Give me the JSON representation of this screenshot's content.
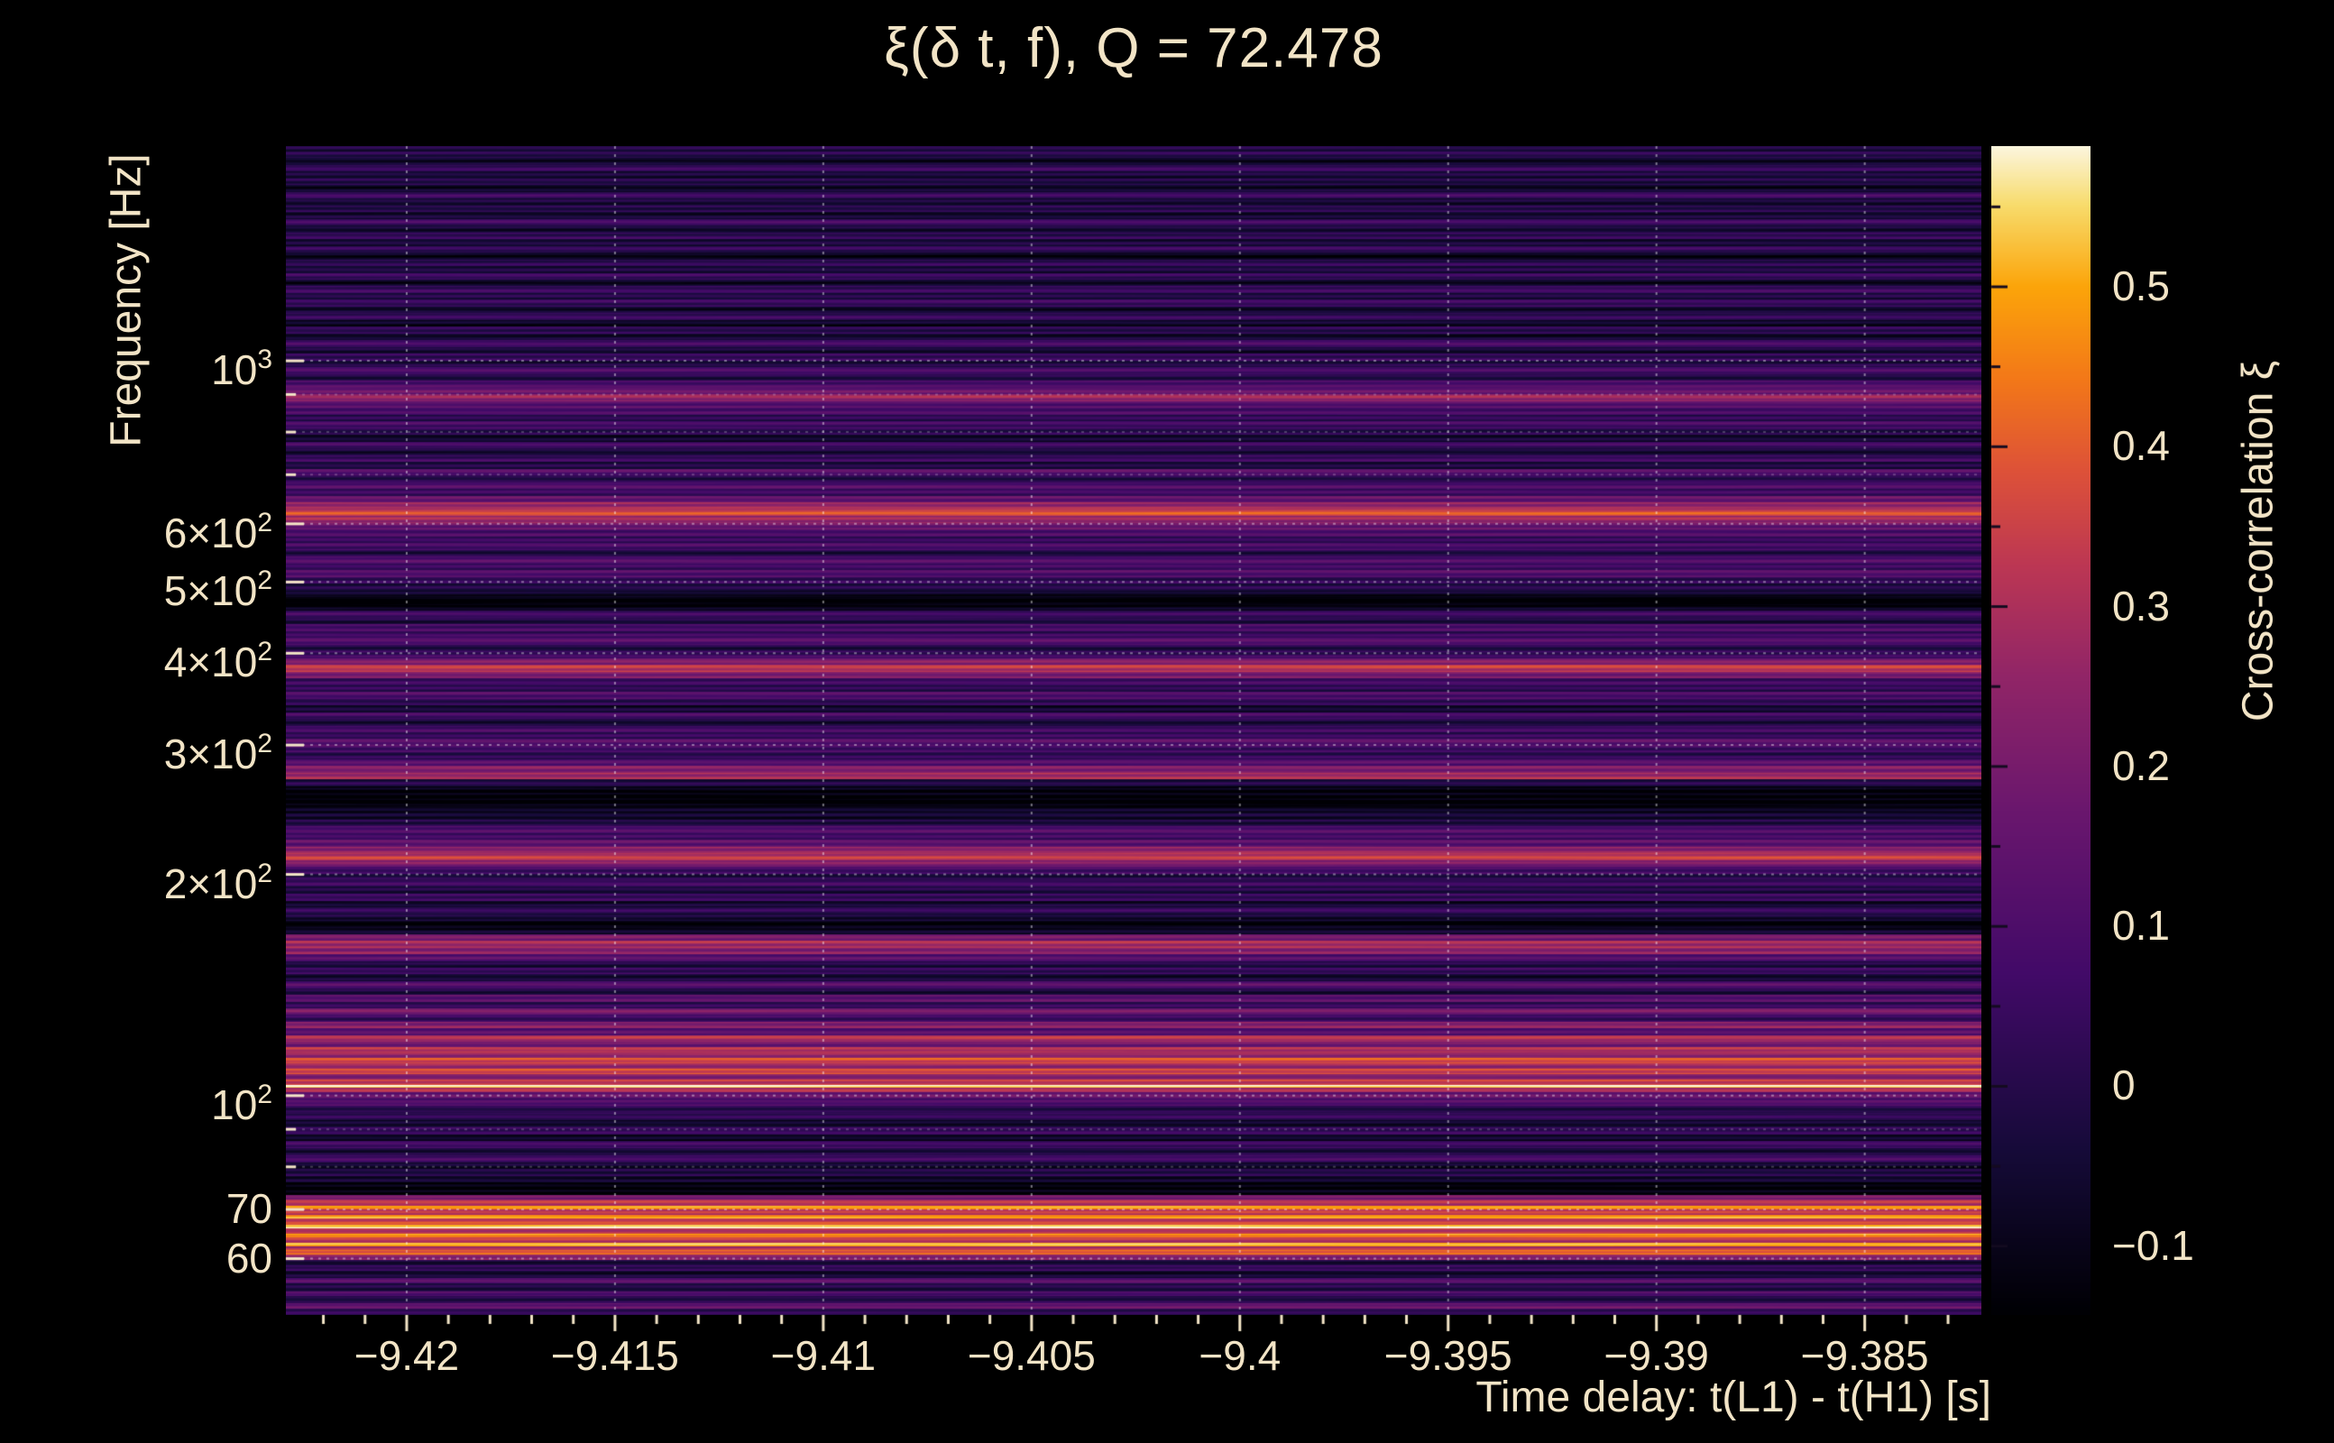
{
  "colors": {
    "background": "#000000",
    "text": "#f2e4c6",
    "grid": "#ffffff",
    "colorbar_tick": "#140b20"
  },
  "chart": {
    "title": "ξ(δ t, f), Q = 72.478",
    "q_value": "72.478",
    "xlabel": "Time delay: t(L1) - t(H1) [s]",
    "ylabel": "Frequency [Hz]",
    "colorbar_label": "Cross-correlation ξ"
  },
  "chart_data": {
    "type": "heatmap",
    "title": "ξ(δ t, f), Q = 72.478",
    "xlabel": "Time delay: t(L1) - t(H1) [s]",
    "ylabel": "Frequency [Hz]",
    "zlabel": "Cross-correlation ξ",
    "x_range": [
      -9.4229,
      -9.3822
    ],
    "y_range": [
      50.3,
      1960
    ],
    "y_scale": "log",
    "z_range": [
      -0.143,
      0.588
    ],
    "grid": "dotted-white",
    "x_ticks": [
      -9.42,
      -9.415,
      -9.41,
      -9.405,
      -9.4,
      -9.395,
      -9.39,
      -9.385
    ],
    "x_tick_labels": [
      "−9.42",
      "−9.415",
      "−9.41",
      "−9.405",
      "−9.4",
      "−9.395",
      "−9.39",
      "−9.385"
    ],
    "x_minor_step": 0.001,
    "y_ticks": [
      {
        "v": 1000,
        "base": "10",
        "exp": "3"
      },
      {
        "v": 600,
        "base": "6×10",
        "exp": "2"
      },
      {
        "v": 500,
        "base": "5×10",
        "exp": "2"
      },
      {
        "v": 400,
        "base": "4×10",
        "exp": "2"
      },
      {
        "v": 300,
        "base": "3×10",
        "exp": "2"
      },
      {
        "v": 200,
        "base": "2×10",
        "exp": "2"
      },
      {
        "v": 100,
        "base": "10",
        "exp": "2"
      },
      {
        "v": 70,
        "base": "70",
        "exp": ""
      },
      {
        "v": 60,
        "base": "60",
        "exp": ""
      }
    ],
    "y_minor_ticks": [
      50,
      60,
      70,
      80,
      90,
      100,
      200,
      300,
      400,
      500,
      600,
      700,
      800,
      900,
      1000,
      2000
    ],
    "colorbar_ticks": [
      0.5,
      0.4,
      0.3,
      0.2,
      0.1,
      0,
      -0.1
    ],
    "colorbar_tick_labels": [
      "0.5",
      "0.4",
      "0.3",
      "0.2",
      "0.1",
      "0",
      "−0.1"
    ],
    "colormap": "inferno",
    "colormap_stops": [
      [
        0.0,
        "#000004"
      ],
      [
        0.14,
        "#160b39"
      ],
      [
        0.29,
        "#420a68"
      ],
      [
        0.43,
        "#6a176e"
      ],
      [
        0.55,
        "#932667"
      ],
      [
        0.64,
        "#bc3754"
      ],
      [
        0.72,
        "#dd513a"
      ],
      [
        0.8,
        "#f37819"
      ],
      [
        0.88,
        "#fca50a"
      ],
      [
        0.95,
        "#f8dc6c"
      ],
      [
        1.0,
        "#fcf6dd"
      ]
    ],
    "bands_note": "Cross-correlation ξ is nearly constant in time delay; bands listed as [f_low_Hz, f_high_Hz, xi]",
    "bands": [
      [
        50.0,
        51.3,
        0.03
      ],
      [
        51.3,
        52.2,
        0.14
      ],
      [
        52.2,
        53.4,
        -0.02
      ],
      [
        53.4,
        54.2,
        0.12
      ],
      [
        54.2,
        55.6,
        0.0
      ],
      [
        55.6,
        56.4,
        0.1
      ],
      [
        56.4,
        57.8,
        -0.06
      ],
      [
        57.8,
        58.8,
        0.06
      ],
      [
        58.8,
        59.8,
        -0.03
      ],
      [
        59.8,
        60.8,
        0.22
      ],
      [
        60.8,
        61.6,
        0.4
      ],
      [
        61.6,
        62.4,
        0.3
      ],
      [
        62.4,
        63.0,
        0.52
      ],
      [
        63.0,
        64.2,
        0.34
      ],
      [
        64.2,
        64.9,
        0.47
      ],
      [
        64.9,
        66.0,
        0.3
      ],
      [
        66.0,
        66.8,
        0.55
      ],
      [
        66.8,
        68.0,
        0.36
      ],
      [
        68.0,
        68.8,
        0.5
      ],
      [
        68.8,
        70.0,
        0.33
      ],
      [
        70.0,
        70.9,
        0.45
      ],
      [
        70.9,
        72.2,
        0.3
      ],
      [
        72.2,
        73.2,
        0.2
      ],
      [
        73.2,
        74.6,
        -0.1
      ],
      [
        74.6,
        76.2,
        -0.14
      ],
      [
        76.2,
        77.8,
        -0.08
      ],
      [
        77.8,
        79.5,
        0.0
      ],
      [
        79.5,
        81.2,
        -0.05
      ],
      [
        81.2,
        83.0,
        0.06
      ],
      [
        83.0,
        84.8,
        -0.04
      ],
      [
        84.8,
        86.7,
        0.08
      ],
      [
        86.7,
        88.6,
        -0.07
      ],
      [
        88.6,
        90.6,
        0.02
      ],
      [
        90.6,
        92.6,
        -0.05
      ],
      [
        92.6,
        94.7,
        0.05
      ],
      [
        94.7,
        96.8,
        -0.02
      ],
      [
        96.8,
        99.0,
        0.1
      ],
      [
        99.0,
        101.2,
        0.18
      ],
      [
        101.2,
        102.4,
        0.3
      ],
      [
        102.4,
        103.5,
        0.55
      ],
      [
        103.5,
        105.3,
        0.32
      ],
      [
        105.3,
        107.0,
        0.22
      ],
      [
        107.0,
        108.8,
        0.38
      ],
      [
        108.8,
        110.6,
        0.28
      ],
      [
        110.6,
        112.5,
        0.36
      ],
      [
        112.5,
        114.4,
        0.24
      ],
      [
        114.4,
        116.4,
        0.32
      ],
      [
        116.4,
        118.4,
        0.2
      ],
      [
        118.4,
        120.9,
        0.3
      ],
      [
        120.9,
        123.5,
        0.1
      ],
      [
        123.5,
        126.1,
        0.24
      ],
      [
        126.1,
        128.8,
        0.06
      ],
      [
        128.8,
        131.5,
        0.18
      ],
      [
        131.5,
        134.3,
        0.02
      ],
      [
        134.3,
        137.2,
        0.14
      ],
      [
        137.2,
        140.1,
        -0.02
      ],
      [
        140.1,
        143.1,
        0.1
      ],
      [
        143.1,
        146.2,
        -0.05
      ],
      [
        146.2,
        149.3,
        0.06
      ],
      [
        149.3,
        152.5,
        -0.02
      ],
      [
        152.5,
        155.7,
        0.1
      ],
      [
        155.7,
        159.0,
        0.24
      ],
      [
        159.0,
        162.4,
        0.3
      ],
      [
        162.4,
        165.9,
        0.18
      ],
      [
        165.9,
        169.4,
        -0.08
      ],
      [
        169.4,
        173.0,
        -0.12
      ],
      [
        173.0,
        176.7,
        -0.04
      ],
      [
        176.7,
        180.5,
        0.02
      ],
      [
        180.5,
        184.3,
        -0.06
      ],
      [
        184.3,
        188.3,
        0.06
      ],
      [
        188.3,
        192.3,
        -0.02
      ],
      [
        192.3,
        196.4,
        0.04
      ],
      [
        196.4,
        200.6,
        0.0
      ],
      [
        200.6,
        204.9,
        0.08
      ],
      [
        204.9,
        209.2,
        0.2
      ],
      [
        209.2,
        213.7,
        0.32
      ],
      [
        213.7,
        218.2,
        0.26
      ],
      [
        218.2,
        222.9,
        0.14
      ],
      [
        222.9,
        227.6,
        0.05
      ],
      [
        227.6,
        232.5,
        0.1
      ],
      [
        232.5,
        237.4,
        0.0
      ],
      [
        237.4,
        242.5,
        -0.06
      ],
      [
        242.5,
        247.6,
        -0.1
      ],
      [
        247.6,
        252.9,
        -0.14
      ],
      [
        252.9,
        258.3,
        -0.12
      ],
      [
        258.3,
        263.8,
        -0.14
      ],
      [
        263.8,
        269.4,
        -0.02
      ],
      [
        269.4,
        275.1,
        0.3
      ],
      [
        275.1,
        281.0,
        0.22
      ],
      [
        281.0,
        287.0,
        0.1
      ],
      [
        287.0,
        293.1,
        0.02
      ],
      [
        293.1,
        299.3,
        0.08
      ],
      [
        299.3,
        305.7,
        0.12
      ],
      [
        305.7,
        312.2,
        0.02
      ],
      [
        312.2,
        318.9,
        0.08
      ],
      [
        318.9,
        325.7,
        -0.02
      ],
      [
        325.7,
        332.6,
        0.06
      ],
      [
        332.6,
        339.7,
        -0.06
      ],
      [
        339.7,
        347.0,
        0.04
      ],
      [
        347.0,
        354.4,
        0.1
      ],
      [
        354.4,
        362.0,
        0.0
      ],
      [
        362.0,
        369.7,
        0.06
      ],
      [
        369.7,
        377.6,
        0.22
      ],
      [
        377.6,
        385.7,
        0.32
      ],
      [
        385.7,
        394.0,
        0.2
      ],
      [
        394.0,
        402.4,
        0.06
      ],
      [
        402.4,
        411.0,
        0.0
      ],
      [
        411.0,
        419.8,
        0.1
      ],
      [
        419.8,
        428.8,
        0.04
      ],
      [
        428.8,
        437.9,
        0.1
      ],
      [
        437.9,
        447.3,
        -0.02
      ],
      [
        447.3,
        456.9,
        0.04
      ],
      [
        456.9,
        466.7,
        -0.1
      ],
      [
        466.7,
        476.7,
        -0.14
      ],
      [
        476.7,
        486.9,
        -0.08
      ],
      [
        486.9,
        497.3,
        -0.02
      ],
      [
        497.3,
        508.0,
        0.04
      ],
      [
        508.0,
        518.9,
        0.12
      ],
      [
        518.9,
        530.0,
        0.04
      ],
      [
        530.0,
        541.3,
        0.1
      ],
      [
        541.3,
        552.9,
        0.0
      ],
      [
        552.9,
        564.8,
        0.08
      ],
      [
        564.8,
        576.9,
        0.02
      ],
      [
        576.9,
        589.2,
        0.1
      ],
      [
        589.2,
        601.8,
        0.18
      ],
      [
        601.8,
        614.7,
        0.26
      ],
      [
        614.7,
        627.9,
        0.36
      ],
      [
        627.9,
        641.4,
        0.28
      ],
      [
        641.4,
        655.1,
        0.16
      ],
      [
        655.1,
        669.1,
        0.04
      ],
      [
        669.1,
        683.4,
        0.1
      ],
      [
        683.4,
        698.1,
        0.02
      ],
      [
        698.1,
        713.0,
        0.12
      ],
      [
        713.0,
        728.3,
        -0.04
      ],
      [
        728.3,
        743.9,
        0.06
      ],
      [
        743.9,
        759.8,
        -0.02
      ],
      [
        759.8,
        776.1,
        0.05
      ],
      [
        776.1,
        792.7,
        -0.07
      ],
      [
        792.7,
        809.7,
        0.02
      ],
      [
        809.7,
        827.0,
        0.08
      ],
      [
        827.0,
        844.7,
        0.0
      ],
      [
        844.7,
        862.8,
        0.08
      ],
      [
        862.8,
        881.3,
        0.14
      ],
      [
        881.3,
        900.1,
        0.26
      ],
      [
        900.1,
        919.4,
        0.14
      ],
      [
        919.4,
        939.1,
        0.1
      ],
      [
        939.1,
        959.2,
        0.0
      ],
      [
        959.2,
        979.7,
        0.07
      ],
      [
        979.7,
        1000.7,
        -0.03
      ],
      [
        1000.7,
        1022.1,
        0.05
      ],
      [
        1022.1,
        1044.0,
        -0.04
      ],
      [
        1044.0,
        1066.3,
        0.06
      ],
      [
        1066.3,
        1089.1,
        -0.06
      ],
      [
        1089.1,
        1112.4,
        0.03
      ],
      [
        1112.4,
        1136.2,
        -0.08
      ],
      [
        1136.2,
        1160.5,
        0.02
      ],
      [
        1160.5,
        1185.3,
        -0.05
      ],
      [
        1185.3,
        1210.7,
        0.06
      ],
      [
        1210.7,
        1236.6,
        -0.03
      ],
      [
        1236.6,
        1263.0,
        0.04
      ],
      [
        1263.0,
        1290.0,
        -0.06
      ],
      [
        1290.0,
        1317.6,
        0.05
      ],
      [
        1317.6,
        1345.8,
        -0.04
      ],
      [
        1345.8,
        1374.6,
        0.02
      ],
      [
        1374.6,
        1404.0,
        -0.08
      ],
      [
        1404.0,
        1434.0,
        0.03
      ],
      [
        1434.0,
        1464.7,
        -0.05
      ],
      [
        1464.7,
        1496.0,
        0.04
      ],
      [
        1496.0,
        1528.0,
        -0.03
      ],
      [
        1528.0,
        1560.7,
        0.05
      ],
      [
        1560.7,
        1594.1,
        -0.06
      ],
      [
        1594.1,
        1628.2,
        0.02
      ],
      [
        1628.2,
        1663.0,
        -0.04
      ],
      [
        1663.0,
        1698.6,
        0.04
      ],
      [
        1698.6,
        1734.9,
        -0.07
      ],
      [
        1734.9,
        1772.0,
        0.01
      ],
      [
        1772.0,
        1809.9,
        -0.04
      ],
      [
        1809.9,
        1848.6,
        0.03
      ],
      [
        1848.6,
        1888.1,
        -0.06
      ],
      [
        1888.1,
        1928.5,
        0.02
      ],
      [
        1928.5,
        1970.0,
        -0.03
      ]
    ]
  }
}
